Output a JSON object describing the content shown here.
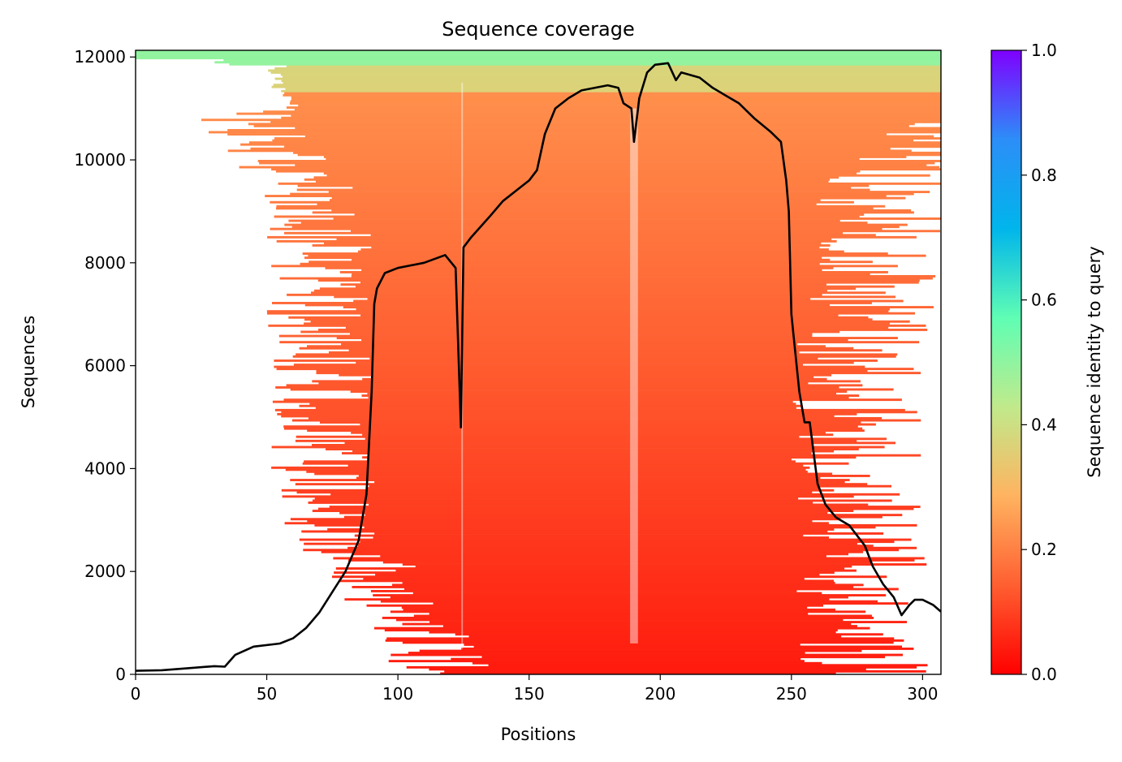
{
  "chart_data": {
    "type": "heatmap",
    "title": "Sequence coverage",
    "xlabel": "Positions",
    "ylabel": "Sequences",
    "xlim": [
      0,
      307
    ],
    "ylim": [
      0,
      12130
    ],
    "x_ticks": [
      0,
      50,
      100,
      150,
      200,
      250,
      300
    ],
    "y_ticks": [
      0,
      2000,
      4000,
      6000,
      8000,
      10000,
      12000
    ],
    "colorbar": {
      "label": "Sequence identity to query",
      "ticks": [
        0.0,
        0.2,
        0.4,
        0.6,
        0.8,
        1.0
      ],
      "tick_labels": [
        "0.0",
        "0.2",
        "0.4",
        "0.6",
        "0.8",
        "1.0"
      ],
      "colormap": "rainbow_r",
      "colors": [
        "#ff0000",
        "#ff5f31",
        "#ffb360",
        "#c0ea8c",
        "#5ffeb4",
        "#00b5eb",
        "#2c8ef8",
        "#7f00ff"
      ]
    },
    "coverage_line": {
      "color": "#000000",
      "points": [
        [
          0,
          70
        ],
        [
          10,
          80
        ],
        [
          20,
          120
        ],
        [
          30,
          160
        ],
        [
          34,
          150
        ],
        [
          38,
          380
        ],
        [
          45,
          540
        ],
        [
          55,
          600
        ],
        [
          60,
          700
        ],
        [
          65,
          900
        ],
        [
          70,
          1200
        ],
        [
          75,
          1600
        ],
        [
          80,
          2000
        ],
        [
          85,
          2600
        ],
        [
          88,
          3500
        ],
        [
          89,
          4500
        ],
        [
          90,
          5500
        ],
        [
          91,
          7200
        ],
        [
          92,
          7500
        ],
        [
          95,
          7800
        ],
        [
          100,
          7900
        ],
        [
          110,
          8000
        ],
        [
          118,
          8150
        ],
        [
          122,
          7900
        ],
        [
          124,
          4800
        ],
        [
          125,
          8300
        ],
        [
          128,
          8500
        ],
        [
          135,
          8900
        ],
        [
          140,
          9200
        ],
        [
          145,
          9400
        ],
        [
          150,
          9600
        ],
        [
          153,
          9800
        ],
        [
          156,
          10500
        ],
        [
          160,
          11000
        ],
        [
          165,
          11200
        ],
        [
          170,
          11350
        ],
        [
          180,
          11450
        ],
        [
          184,
          11400
        ],
        [
          186,
          11100
        ],
        [
          189,
          11000
        ],
        [
          190,
          10350
        ],
        [
          192,
          11200
        ],
        [
          195,
          11700
        ],
        [
          198,
          11850
        ],
        [
          203,
          11880
        ],
        [
          206,
          11550
        ],
        [
          208,
          11700
        ],
        [
          215,
          11600
        ],
        [
          220,
          11400
        ],
        [
          230,
          11100
        ],
        [
          236,
          10800
        ],
        [
          242,
          10550
        ],
        [
          246,
          10350
        ],
        [
          248,
          9600
        ],
        [
          249,
          9000
        ],
        [
          250,
          7000
        ],
        [
          251,
          6500
        ],
        [
          253,
          5500
        ],
        [
          255,
          4900
        ],
        [
          257,
          4900
        ],
        [
          260,
          3700
        ],
        [
          263,
          3300
        ],
        [
          267,
          3050
        ],
        [
          272,
          2900
        ],
        [
          278,
          2500
        ],
        [
          281,
          2100
        ],
        [
          285,
          1750
        ],
        [
          289,
          1500
        ],
        [
          292,
          1150
        ],
        [
          295,
          1350
        ],
        [
          297,
          1450
        ],
        [
          300,
          1450
        ],
        [
          304,
          1350
        ],
        [
          307,
          1220
        ]
      ]
    }
  }
}
